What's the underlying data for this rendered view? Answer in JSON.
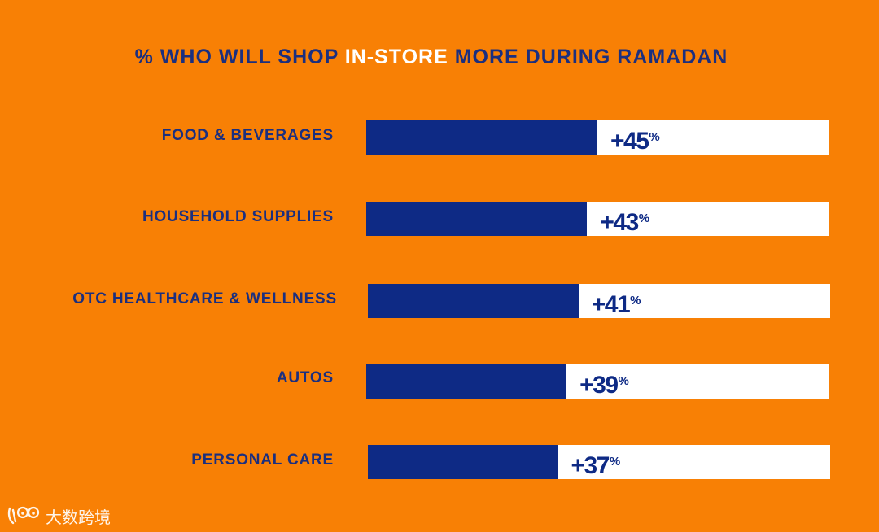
{
  "chart_data": {
    "type": "bar",
    "orientation": "horizontal",
    "title_parts": [
      "% WHO WILL SHOP ",
      "IN-STORE",
      " MORE DURING RAMADAN"
    ],
    "categories": [
      "FOOD & BEVERAGES",
      "HOUSEHOLD SUPPLIES",
      "OTC HEALTHCARE & WELLNESS",
      "AUTOS",
      "PERSONAL CARE"
    ],
    "values": [
      45,
      43,
      41,
      39,
      37
    ],
    "value_prefix": "+",
    "value_suffix": "%",
    "xlim": [
      0,
      90
    ],
    "colors": {
      "background": "#F88005",
      "bar": "#0E2A85",
      "track": "#FFFFFF",
      "label": "#1B2F7F",
      "highlight": "#FFFFFF"
    }
  },
  "watermark": {
    "logo_icon": "cartoon-face-logo",
    "text": "大数跨境"
  }
}
